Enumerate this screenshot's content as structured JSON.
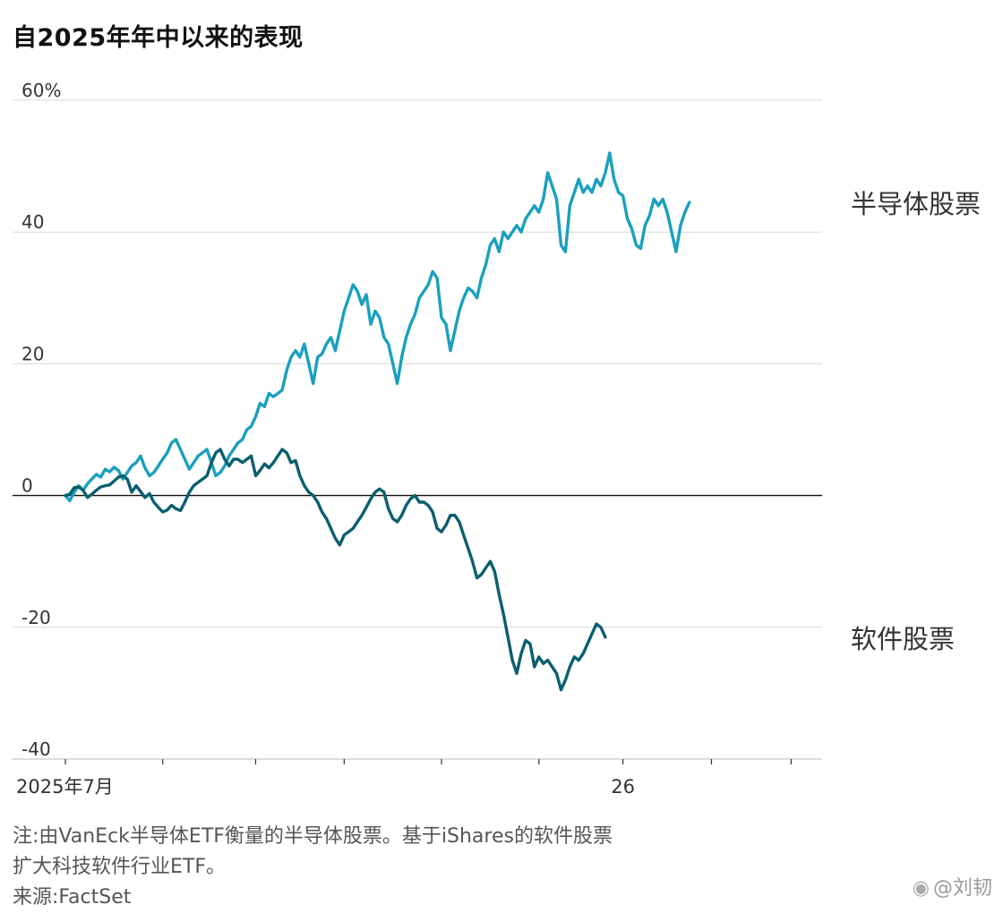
{
  "chart_data": {
    "type": "line",
    "title": "自2025年年中以来的表现",
    "xlabel": "",
    "ylabel": "",
    "ylim": [
      -40,
      60
    ],
    "yticks": [
      60,
      40,
      20,
      0,
      -20,
      -40
    ],
    "ytick_labels": [
      "60%",
      "40",
      "20",
      "0",
      "-20",
      "-40"
    ],
    "xlim": [
      0,
      171
    ],
    "xticks": [
      {
        "x": 0,
        "label": "2025年7月"
      },
      {
        "x": 22,
        "label": ""
      },
      {
        "x": 43,
        "label": ""
      },
      {
        "x": 63,
        "label": ""
      },
      {
        "x": 85,
        "label": ""
      },
      {
        "x": 107,
        "label": ""
      },
      {
        "x": 126,
        "label": "26"
      },
      {
        "x": 146,
        "label": ""
      },
      {
        "x": 164,
        "label": ""
      }
    ],
    "grid": true,
    "series": [
      {
        "name": "半导体股票",
        "color": "#1aa0bd",
        "values": [
          0,
          -0.8,
          0.5,
          1.5,
          0.8,
          1.8,
          2.5,
          3.2,
          2.8,
          4,
          3.6,
          4.3,
          3.8,
          2.5,
          3.5,
          4.5,
          5,
          6,
          4.2,
          3,
          3.5,
          4.5,
          5.5,
          6.5,
          8,
          8.5,
          7,
          5.5,
          4,
          5,
          6,
          6.5,
          7,
          5,
          3,
          3.5,
          4.5,
          6,
          7,
          8,
          8.5,
          10,
          10.5,
          12,
          14,
          13.5,
          15.5,
          15,
          15.5,
          16,
          19,
          21,
          22,
          21,
          23,
          20,
          17,
          21,
          21.5,
          23,
          24,
          22,
          25,
          28,
          30,
          32,
          31,
          29,
          30.5,
          26,
          28,
          27,
          24,
          23,
          20,
          17,
          21,
          24,
          26,
          27.5,
          30,
          31,
          32,
          34,
          33,
          27,
          26,
          22,
          25,
          28,
          30,
          31.5,
          31,
          30,
          33,
          35,
          38,
          39,
          37,
          40,
          39,
          40,
          41,
          40,
          42,
          43,
          44,
          43,
          45,
          49,
          47,
          45,
          38,
          37,
          44,
          46,
          48,
          46,
          47,
          46,
          48,
          47,
          49,
          52,
          48,
          46,
          45.5,
          42,
          40.5,
          38,
          37.5,
          41,
          42.5,
          45,
          44,
          45,
          43,
          40,
          37,
          41,
          43,
          44.5
        ],
        "label": "半导体股票"
      },
      {
        "name": "软件股票",
        "color": "#0b5f6e",
        "values": [
          0,
          0.2,
          1.2,
          1.3,
          0.8,
          -0.3,
          0.2,
          0.8,
          1.3,
          1.5,
          1.6,
          2.2,
          2.8,
          3,
          2.5,
          0.5,
          1.5,
          0.6,
          -0.3,
          0.3,
          -1,
          -1.8,
          -2.5,
          -2.2,
          -1.5,
          -2,
          -2.3,
          -1,
          0.5,
          1.5,
          2,
          2.5,
          3,
          5,
          6.5,
          7,
          5.5,
          4.5,
          5.5,
          5.5,
          5,
          5.5,
          6,
          3,
          3.8,
          4.8,
          4.2,
          5,
          6,
          7,
          6.5,
          5,
          5.3,
          3,
          1.5,
          0.5,
          0,
          -1,
          -2.5,
          -3.5,
          -5,
          -6.5,
          -7.5,
          -6,
          -5.5,
          -5,
          -4,
          -3,
          -1.8,
          -0.5,
          0.5,
          1,
          0.5,
          -2,
          -3.5,
          -4,
          -3,
          -1.5,
          -0.5,
          0,
          -1,
          -1,
          -1.5,
          -2.5,
          -5,
          -5.5,
          -4.5,
          -3,
          -3,
          -4,
          -6,
          -8,
          -10,
          -12.5,
          -12,
          -11,
          -10,
          -11.5,
          -15,
          -18,
          -21.5,
          -25,
          -27,
          -24,
          -22,
          -22.5,
          -26,
          -24.5,
          -25.5,
          -25,
          -26,
          -27,
          -29.5,
          -28,
          -26,
          -24.5,
          -25,
          -24,
          -22.5,
          -21,
          -19.5,
          -20,
          -21.5
        ],
        "label": "软件股票"
      }
    ]
  },
  "notes": {
    "note_line1": "注:由VanEck半导体ETF衡量的半导体股票。基于iShares的软件股票",
    "note_line2": "扩大科技软件行业ETF。",
    "source": "来源:FactSet"
  },
  "watermark": {
    "text": "@刘韧"
  }
}
